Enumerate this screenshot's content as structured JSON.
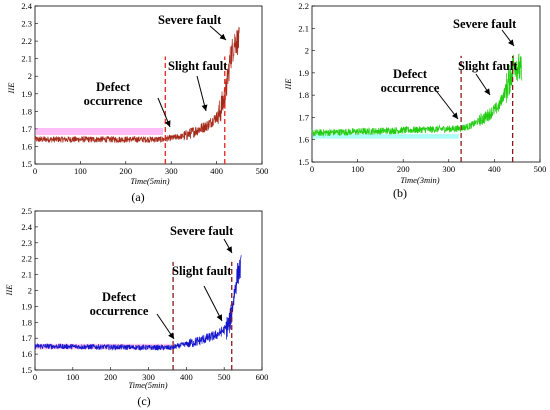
{
  "chart_data": [
    {
      "type": "line",
      "id": "a",
      "panel_label": "(a)",
      "xlabel": "Time(5min)",
      "ylabel": "IIE",
      "xlim": [
        0,
        500
      ],
      "ylim": [
        1.5,
        2.4
      ],
      "xticks": [
        0,
        100,
        200,
        300,
        400,
        500
      ],
      "yticks": [
        1.5,
        1.6,
        1.7,
        1.8,
        1.9,
        2.0,
        2.1,
        2.2,
        2.3,
        2.4
      ],
      "series_color": "#a52a1a",
      "band_color": "#ff88ee",
      "line_color": "#e8231a",
      "segments": [
        {
          "x": [
            0,
            280,
            330,
            380,
            405,
            420,
            430,
            440,
            450
          ],
          "y": [
            1.64,
            1.64,
            1.66,
            1.72,
            1.78,
            1.9,
            2.1,
            2.2,
            2.2
          ]
        }
      ],
      "noise": 0.018,
      "defect_x": 287,
      "severe_x": 418,
      "annotations": [
        {
          "text": "Severe fault",
          "lines": [
            "Severe fault"
          ]
        },
        {
          "text": "Slight fault",
          "lines": [
            "Slight fault"
          ]
        },
        {
          "text": "Defect occurrence",
          "lines": [
            "Defect",
            "occurrence"
          ]
        }
      ]
    },
    {
      "type": "line",
      "id": "b",
      "panel_label": "(b)",
      "xlabel": "Time(3min)",
      "ylabel": "IIE",
      "xlim": [
        0,
        500
      ],
      "ylim": [
        1.5,
        2.2
      ],
      "xticks": [
        0,
        100,
        200,
        300,
        400,
        500
      ],
      "yticks": [
        1.5,
        1.6,
        1.7,
        1.8,
        1.9,
        2.0,
        2.1,
        2.2
      ],
      "series_color": "#22cc11",
      "band_color": "#66ffee",
      "line_color": "#8b1a1a",
      "segments": [
        {
          "x": [
            0,
            320,
            345,
            380,
            410,
            430,
            445,
            460
          ],
          "y": [
            1.63,
            1.65,
            1.66,
            1.7,
            1.75,
            1.85,
            1.95,
            1.9
          ]
        }
      ],
      "noise": 0.016,
      "defect_x": 327,
      "severe_x": 440,
      "annotations": [
        {
          "text": "Severe fault",
          "lines": [
            "Severe fault"
          ]
        },
        {
          "text": "Slight fault",
          "lines": [
            "Slight fault"
          ]
        },
        {
          "text": "Defect occurrence",
          "lines": [
            "Defect",
            "occurrence"
          ]
        }
      ]
    },
    {
      "type": "line",
      "id": "c",
      "panel_label": "(c)",
      "xlabel": "Time(5min)",
      "ylabel": "IIE",
      "xlim": [
        0,
        600
      ],
      "ylim": [
        1.5,
        2.5
      ],
      "xticks": [
        0,
        100,
        200,
        300,
        400,
        500,
        600
      ],
      "yticks": [
        1.5,
        1.6,
        1.7,
        1.8,
        1.9,
        2.0,
        2.1,
        2.2,
        2.3,
        2.4,
        2.5
      ],
      "series_color": "#1515cc",
      "band_color": "#ff99dd",
      "line_color": "#8b1a1a",
      "segments": [
        {
          "x": [
            0,
            360,
            430,
            480,
            505,
            515,
            525,
            535,
            545
          ],
          "y": [
            1.65,
            1.64,
            1.68,
            1.72,
            1.76,
            1.8,
            1.95,
            2.1,
            2.15
          ]
        }
      ],
      "noise": 0.017,
      "defect_x": 365,
      "severe_x": 520,
      "annotations": [
        {
          "text": "Severe fault",
          "lines": [
            "Severe fault"
          ]
        },
        {
          "text": "Slight fault",
          "lines": [
            "Slight fault"
          ]
        },
        {
          "text": "Defect occurrence",
          "lines": [
            "Defect",
            "occurrence"
          ]
        }
      ]
    }
  ]
}
